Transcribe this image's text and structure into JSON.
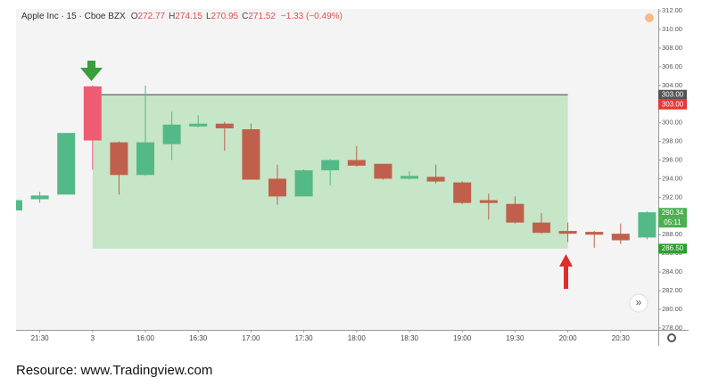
{
  "chart_data": {
    "type": "candlestick",
    "title": "Apple Inc · 15 · Cboe BZX",
    "legend": [
      {
        "label": "O",
        "value": "272.77"
      },
      {
        "label": "H",
        "value": "274.15"
      },
      {
        "label": "L",
        "value": "270.95"
      },
      {
        "label": "C",
        "value": "271.52"
      }
    ],
    "change": "−1.33 (−0.49%)",
    "categories": [
      null,
      "21:30",
      null,
      "3",
      null,
      "16:00",
      null,
      "16:30",
      null,
      "17:00",
      null,
      "17:30",
      null,
      "18:00",
      null,
      "18:30",
      null,
      "19:00",
      null,
      "19:30",
      null,
      "20:00",
      null,
      "20:30",
      null
    ],
    "open": [
      290.6,
      291.8,
      292.3,
      303.9,
      297.9,
      294.4,
      297.7,
      299.6,
      299.9,
      299.3,
      294.0,
      292.1,
      294.9,
      296.0,
      295.6,
      294.0,
      294.2,
      293.6,
      291.7,
      291.3,
      289.3,
      288.4,
      288.3,
      288.1,
      287.7
    ],
    "high": [
      292.0,
      292.6,
      298.9,
      304.0,
      298.0,
      304.0,
      301.2,
      300.8,
      300.1,
      299.9,
      295.5,
      295.0,
      296.1,
      297.5,
      295.6,
      294.8,
      295.5,
      293.7,
      292.4,
      292.1,
      290.3,
      289.3,
      288.4,
      289.2,
      290.5
    ],
    "low": [
      290.5,
      291.4,
      292.3,
      295.0,
      292.3,
      294.3,
      296.0,
      299.5,
      297.0,
      293.9,
      291.2,
      292.1,
      293.3,
      295.3,
      293.9,
      293.9,
      293.5,
      291.3,
      289.6,
      289.2,
      288.1,
      287.2,
      286.6,
      287.0,
      287.5
    ],
    "close": [
      291.7,
      292.2,
      298.9,
      298.1,
      294.4,
      297.9,
      299.8,
      299.9,
      299.4,
      293.9,
      292.1,
      294.9,
      296.0,
      295.4,
      294.0,
      294.3,
      293.7,
      291.4,
      291.4,
      289.3,
      288.2,
      288.1,
      288.0,
      287.4,
      290.4
    ],
    "up_color": "#53b987",
    "down_color": "#c0604c",
    "highlight": {
      "index": 3,
      "color": "#ef5b73"
    },
    "zone_color": "#c2e3c2",
    "ylim": [
      277.8,
      312.2
    ],
    "yticks": [
      {
        "value": 278,
        "label": "278.00"
      },
      {
        "value": 280,
        "label": "280.00"
      },
      {
        "value": 282,
        "label": "282.00"
      },
      {
        "value": 284,
        "label": "284.00"
      },
      {
        "value": 286,
        "label": "286.00"
      },
      {
        "value": 288,
        "label": "288.00"
      },
      {
        "value": 290,
        "label": "290.00"
      },
      {
        "value": 292,
        "label": "292.00"
      },
      {
        "value": 294,
        "label": "294.00"
      },
      {
        "value": 296,
        "label": "296.00"
      },
      {
        "value": 298,
        "label": "298.00"
      },
      {
        "value": 300,
        "label": "300.00"
      },
      {
        "value": 302,
        "label": "302.00"
      },
      {
        "value": 304,
        "label": "304.00"
      },
      {
        "value": 306,
        "label": "306.00"
      },
      {
        "value": 308,
        "label": "308.00"
      },
      {
        "value": 310,
        "label": "310.00"
      },
      {
        "value": 312,
        "label": "312.00"
      }
    ],
    "price_tags": [
      {
        "value": 303,
        "label": "303.00",
        "color": "#555555"
      },
      {
        "value": 303,
        "label": "303.00",
        "color": "#e53935"
      },
      {
        "value": 290.34,
        "label": "290.34",
        "color": "#4caf50"
      },
      {
        "value": 286.5,
        "label": "286.50",
        "color": "#2e9e2e"
      }
    ],
    "countdown": "05:11"
  },
  "footer": "Resource: www.Tradingview.com"
}
